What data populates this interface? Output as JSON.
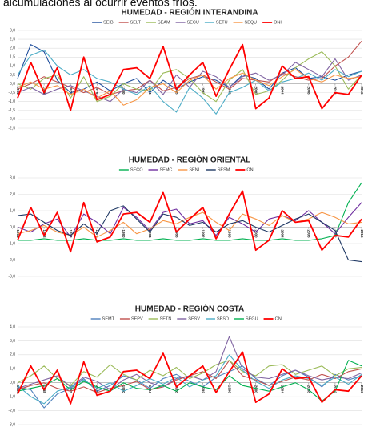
{
  "header": "alcumulaciones al ocurrir eventos fríos.",
  "chart_data": [
    {
      "type": "line",
      "title": "HUMEDAD - REGIÓN INTERANDINA",
      "x": [
        1964,
        1966,
        1968,
        1970,
        1972,
        1974,
        1976,
        1978,
        1980,
        1982,
        1984,
        1986,
        1988,
        1990,
        1992,
        1994,
        1996,
        1998,
        2000,
        2002,
        2004,
        2006,
        2008,
        2010,
        2012,
        2014,
        2016
      ],
      "xlim": [
        1964,
        2016
      ],
      "xticks": [
        1964,
        1968,
        1972,
        1976,
        1980,
        1984,
        1988,
        1992,
        1996,
        2000,
        2004,
        2008,
        2012,
        2016
      ],
      "ylim": [
        -2.5,
        3.0
      ],
      "yticks": [
        {
          "value": -2.5,
          "label": "-2,5"
        },
        {
          "value": -2.0,
          "label": "-2,0"
        },
        {
          "value": -1.5,
          "label": "-1,5"
        },
        {
          "value": -1.0,
          "label": "-1,0"
        },
        {
          "value": -0.5,
          "label": "-0,5"
        },
        {
          "value": 0,
          "label": "0,0"
        },
        {
          "value": 0.5,
          "label": "0,5"
        },
        {
          "value": 1.0,
          "label": "1,0"
        },
        {
          "value": 1.5,
          "label": "1,5"
        },
        {
          "value": 2.0,
          "label": "2,0"
        },
        {
          "value": 2.5,
          "label": "2,5"
        },
        {
          "value": 3.0,
          "label": "3,0"
        }
      ],
      "grid": true,
      "legend": "top",
      "series": [
        {
          "name": "SEIB",
          "color": "#1f4e9c",
          "values": [
            0.3,
            2.2,
            1.8,
            0.2,
            -0.5,
            -0.3,
            0.1,
            -0.4,
            0.0,
            0.3,
            -0.5,
            0.2,
            -0.3,
            0.1,
            0.4,
            0.2,
            -0.2,
            0.5,
            0.3,
            -0.3,
            0.6,
            0.9,
            0.3,
            0.4,
            0.2,
            0.5,
            0.7
          ]
        },
        {
          "name": "SELT",
          "color": "#c0504d",
          "values": [
            -0.3,
            0.0,
            0.4,
            0.1,
            -0.2,
            -0.5,
            -0.2,
            -0.6,
            -0.4,
            -0.3,
            0.2,
            -0.4,
            -0.2,
            0.3,
            0.5,
            0.1,
            -0.3,
            0.3,
            0.2,
            0.1,
            0.6,
            0.4,
            0.2,
            0.3,
            1.0,
            1.5,
            2.4
          ]
        },
        {
          "name": "SEAM",
          "color": "#9bbb59",
          "values": [
            0.0,
            -0.3,
            0.3,
            0.5,
            -0.8,
            0.4,
            -1.0,
            -0.7,
            0.0,
            -0.3,
            -0.4,
            0.6,
            0.8,
            0.3,
            -0.5,
            -1.0,
            0.2,
            0.8,
            -0.6,
            -0.4,
            0.2,
            0.9,
            1.4,
            1.8,
            1.0,
            -0.3,
            0.5
          ]
        },
        {
          "name": "SECU",
          "color": "#8064a2",
          "values": [
            -0.5,
            -0.2,
            -0.6,
            -0.3,
            -0.1,
            -0.4,
            -0.7,
            -1.0,
            -0.3,
            -0.5,
            0.2,
            -0.6,
            0.5,
            -0.2,
            0.7,
            0.4,
            -0.2,
            0.4,
            0.6,
            0.2,
            0.5,
            1.2,
            0.8,
            0.4,
            1.4,
            0.2,
            0.5
          ]
        },
        {
          "name": "SETU",
          "color": "#4bacc6",
          "values": [
            0.5,
            1.6,
            1.9,
            1.0,
            0.5,
            0.8,
            0.3,
            0.1,
            -0.3,
            -0.6,
            -0.1,
            -1.0,
            -1.6,
            -0.2,
            -0.8,
            -1.7,
            -0.5,
            -0.2,
            0.2,
            -0.4,
            0.1,
            0.3,
            0.6,
            0.2,
            0.8,
            0.4,
            0.7
          ]
        },
        {
          "name": "SEQU",
          "color": "#f79646",
          "values": [
            -0.2,
            0.1,
            -0.3,
            -0.1,
            -0.6,
            -0.3,
            -0.8,
            -0.4,
            -1.2,
            -0.9,
            -0.2,
            0.0,
            -0.5,
            0.2,
            0.5,
            -0.3,
            0.3,
            0.6,
            0.2,
            -0.1,
            0.4,
            0.8,
            0.3,
            0.1,
            0.5,
            0.3,
            0.4
          ]
        },
        {
          "name": "ONI",
          "color": "#ff0000",
          "values": [
            -0.8,
            1.2,
            -0.5,
            0.9,
            -1.5,
            1.5,
            -0.9,
            -0.6,
            0.8,
            0.9,
            0.3,
            2.1,
            -0.3,
            0.5,
            1.2,
            -0.7,
            0.8,
            2.2,
            -1.4,
            -0.8,
            1.0,
            0.3,
            0.4,
            -1.4,
            -0.5,
            -0.6,
            0.5
          ]
        }
      ]
    },
    {
      "type": "line",
      "title": "HUMEDAD - REGIÓN ORIENTAL",
      "x": [
        1964,
        1966,
        1968,
        1970,
        1972,
        1974,
        1976,
        1978,
        1980,
        1982,
        1984,
        1986,
        1988,
        1990,
        1992,
        1994,
        1996,
        1998,
        2000,
        2002,
        2004,
        2006,
        2008,
        2010,
        2012,
        2014,
        2016
      ],
      "xlim": [
        1964,
        2016
      ],
      "xticks": [
        1964,
        1968,
        1972,
        1976,
        1980,
        1984,
        1988,
        1992,
        1996,
        2000,
        2004,
        2008,
        2012,
        2016
      ],
      "ylim": [
        -3.0,
        3.0
      ],
      "yticks": [
        {
          "value": -3.0,
          "label": "-3,0"
        },
        {
          "value": -2.0,
          "label": "-2,0"
        },
        {
          "value": -1.0,
          "label": "-1,0"
        },
        {
          "value": 0,
          "label": "0,0"
        },
        {
          "value": 1.0,
          "label": "1,0"
        },
        {
          "value": 2.0,
          "label": "2,0"
        },
        {
          "value": 3.0,
          "label": "3,0"
        }
      ],
      "grid": true,
      "legend": "top",
      "series": [
        {
          "name": "SECO",
          "color": "#00b050",
          "values": [
            -0.8,
            -0.8,
            -0.7,
            -0.8,
            -0.8,
            -0.7,
            -0.8,
            -0.8,
            -0.7,
            -0.8,
            -0.8,
            -0.7,
            -0.8,
            -0.8,
            -0.7,
            -0.8,
            -0.8,
            -0.7,
            -0.8,
            -0.8,
            -0.7,
            -0.8,
            -0.8,
            -0.7,
            -0.5,
            1.5,
            2.7
          ]
        },
        {
          "name": "SEMC",
          "color": "#7030a0",
          "values": [
            0.0,
            -0.3,
            0.2,
            0.5,
            -0.6,
            0.8,
            0.3,
            -0.4,
            1.2,
            0.6,
            -0.2,
            0.9,
            1.1,
            0.2,
            0.4,
            -0.5,
            0.6,
            0.2,
            -0.3,
            0.5,
            0.7,
            0.4,
            1.0,
            0.3,
            -0.4,
            0.6,
            1.5
          ]
        },
        {
          "name": "SENL",
          "color": "#f79646",
          "values": [
            -0.4,
            -0.2,
            0.1,
            -0.3,
            -0.5,
            0.0,
            -0.6,
            -0.2,
            0.3,
            -0.4,
            -0.1,
            0.4,
            0.2,
            0.6,
            0.9,
            0.3,
            -0.2,
            0.8,
            0.5,
            0.1,
            0.7,
            0.3,
            0.5,
            0.9,
            0.6,
            0.2,
            0.3
          ]
        },
        {
          "name": "SESM",
          "color": "#1f3864",
          "values": [
            0.7,
            0.8,
            0.3,
            -0.2,
            -0.5,
            0.2,
            -0.4,
            1.0,
            1.3,
            0.5,
            -0.3,
            0.8,
            0.6,
            0.1,
            0.3,
            -0.3,
            0.2,
            0.4,
            0.0,
            -0.3,
            0.1,
            0.5,
            0.8,
            0.3,
            -0.2,
            -2.0,
            -2.1
          ]
        },
        {
          "name": "ONI",
          "color": "#ff0000",
          "values": [
            -0.8,
            1.2,
            -0.5,
            0.9,
            -1.5,
            1.5,
            -0.9,
            -0.6,
            0.8,
            0.9,
            0.3,
            2.1,
            -0.3,
            0.5,
            1.2,
            -0.7,
            0.8,
            2.2,
            -1.4,
            -0.8,
            1.0,
            0.3,
            0.4,
            -1.4,
            -0.5,
            -0.6,
            0.5
          ]
        }
      ]
    },
    {
      "type": "line",
      "title": "HUMEDAD - REGIÓN COSTA",
      "x": [
        1964,
        1966,
        1968,
        1970,
        1972,
        1974,
        1976,
        1978,
        1980,
        1982,
        1984,
        1986,
        1988,
        1990,
        1992,
        1994,
        1996,
        1998,
        2000,
        2002,
        2004,
        2006,
        2008,
        2010,
        2012,
        2014,
        2016
      ],
      "xlim": [
        1964,
        2016
      ],
      "xticks": [
        1964,
        1968,
        1972,
        1976,
        1980,
        1984,
        1988,
        1992,
        1996,
        2000,
        2004,
        2008,
        2012,
        2016
      ],
      "ylim": [
        -3.0,
        4.0
      ],
      "yticks": [
        {
          "value": -3.0,
          "label": "-3,0"
        },
        {
          "value": -2.0,
          "label": "-2,0"
        },
        {
          "value": -1.0,
          "label": "-1,0"
        },
        {
          "value": 0,
          "label": "0,0"
        },
        {
          "value": 1.0,
          "label": "1,0"
        },
        {
          "value": 2.0,
          "label": "2,0"
        },
        {
          "value": 3.0,
          "label": "3,0"
        },
        {
          "value": 4.0,
          "label": "4,0"
        }
      ],
      "grid": true,
      "legend": "top",
      "series": [
        {
          "name": "SEMT",
          "color": "#4f81bd",
          "values": [
            -0.3,
            -0.5,
            -1.8,
            -0.8,
            -0.4,
            0.3,
            -0.6,
            -0.2,
            0.5,
            0.2,
            -0.4,
            0.3,
            0.6,
            0.1,
            -0.3,
            0.4,
            0.8,
            1.2,
            0.3,
            -0.2,
            0.5,
            0.9,
            0.4,
            -0.3,
            0.6,
            0.2,
            0.5
          ]
        },
        {
          "name": "SEPV",
          "color": "#c0504d",
          "values": [
            -0.5,
            -0.2,
            0.0,
            -0.4,
            -0.6,
            -0.3,
            -0.7,
            -0.4,
            -0.2,
            0.1,
            -0.5,
            -0.3,
            0.2,
            0.5,
            0.8,
            0.3,
            1.6,
            0.5,
            0.2,
            -0.2,
            0.1,
            0.4,
            0.2,
            0.6,
            0.3,
            0.8,
            1.0
          ]
        },
        {
          "name": "SETN",
          "color": "#9bbb59",
          "values": [
            0.0,
            0.5,
            1.2,
            0.3,
            -0.2,
            0.8,
            0.4,
            1.3,
            0.6,
            0.2,
            0.9,
            0.5,
            1.1,
            0.3,
            0.7,
            1.3,
            1.6,
            0.8,
            0.5,
            1.2,
            1.3,
            0.6,
            0.9,
            1.2,
            0.5,
            1.0,
            1.1
          ]
        },
        {
          "name": "SESV",
          "color": "#8064a2",
          "values": [
            -0.4,
            -0.1,
            0.2,
            0.5,
            -0.3,
            0.4,
            0.1,
            -0.5,
            0.2,
            0.6,
            0.0,
            -0.3,
            0.3,
            0.5,
            0.2,
            0.8,
            3.3,
            1.0,
            0.4,
            0.3,
            0.6,
            0.9,
            0.5,
            0.2,
            0.4,
            0.3,
            0.7
          ]
        },
        {
          "name": "SESD",
          "color": "#4bacc6",
          "values": [
            -0.2,
            -1.0,
            -1.5,
            -0.6,
            -0.3,
            0.2,
            -0.4,
            0.0,
            -0.6,
            -0.2,
            0.3,
            -0.1,
            0.4,
            -0.3,
            0.2,
            0.5,
            2.0,
            0.9,
            0.1,
            -0.4,
            0.2,
            0.5,
            0.3,
            -0.2,
            0.4,
            -0.1,
            0.6
          ]
        },
        {
          "name": "SEGU",
          "color": "#00b050",
          "values": [
            -0.6,
            -0.4,
            -0.2,
            0.3,
            -0.5,
            0.1,
            -0.3,
            -0.6,
            0.0,
            -0.4,
            -0.5,
            -0.2,
            -0.6,
            0.0,
            -0.3,
            -0.5,
            0.5,
            -0.2,
            -0.4,
            -0.6,
            -0.3,
            0.0,
            -0.5,
            -1.3,
            -0.6,
            1.6,
            1.2
          ]
        },
        {
          "name": "ONI",
          "color": "#ff0000",
          "values": [
            -0.8,
            1.2,
            -0.5,
            0.9,
            -1.5,
            1.5,
            -0.9,
            -0.6,
            0.8,
            0.9,
            0.3,
            2.1,
            -0.3,
            0.5,
            1.2,
            -0.7,
            0.8,
            2.2,
            -1.4,
            -0.8,
            1.0,
            0.3,
            0.4,
            -1.4,
            -0.5,
            -0.6,
            0.5
          ]
        }
      ]
    }
  ]
}
